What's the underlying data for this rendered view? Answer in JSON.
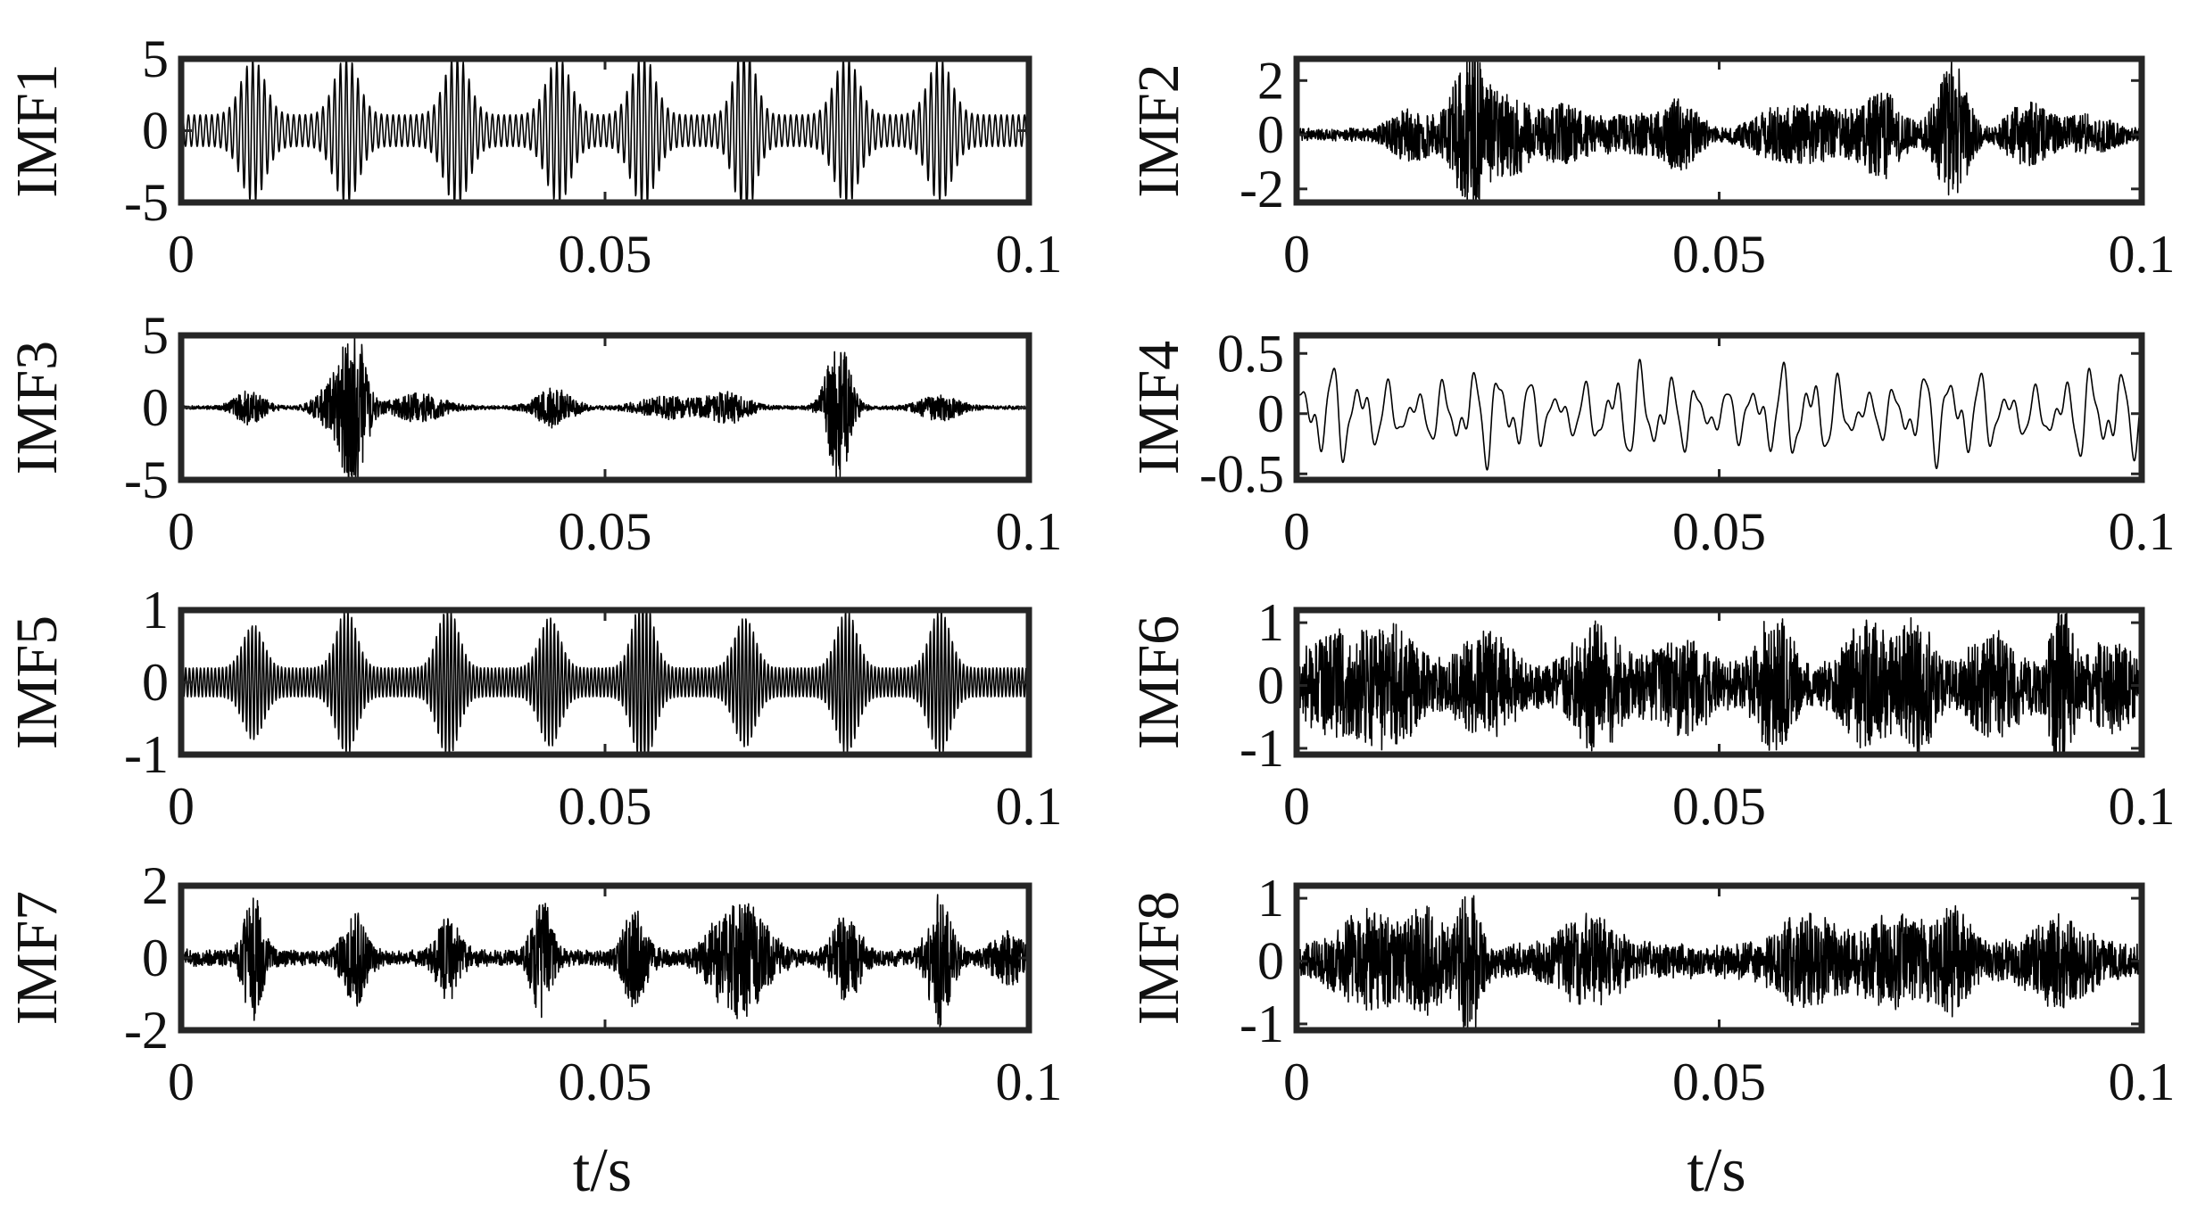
{
  "chart_data": [
    {
      "type": "line",
      "ylabel": "IMF1",
      "xlim": [
        0,
        0.1
      ],
      "ylim": [
        -5,
        5
      ],
      "xticks": [
        0,
        0.05,
        0.1
      ],
      "xtick_labels": [
        "0",
        "0.05",
        "0.1"
      ],
      "yticks": [
        5,
        0,
        -5
      ],
      "ytick_labels": [
        "5",
        "0",
        "-5"
      ],
      "xlabel": "",
      "grid": false,
      "signal": {
        "kind": "impulse",
        "base_amp": 1.1,
        "carrier_hz": 1450,
        "bursts": [
          [
            0.0085,
            3.9,
            0.0014
          ],
          [
            0.0195,
            4.1,
            0.0014
          ],
          [
            0.0325,
            4.3,
            0.0014
          ],
          [
            0.0445,
            4.0,
            0.0014
          ],
          [
            0.0545,
            4.2,
            0.0014
          ],
          [
            0.0665,
            5.0,
            0.0012
          ],
          [
            0.0785,
            4.1,
            0.0014
          ],
          [
            0.0895,
            3.9,
            0.0014
          ]
        ]
      }
    },
    {
      "type": "line",
      "ylabel": "IMF2",
      "xlim": [
        0,
        0.1
      ],
      "ylim": [
        -2.5,
        2.8
      ],
      "xticks": [
        0,
        0.05,
        0.1
      ],
      "xtick_labels": [
        "0",
        "0.05",
        "0.1"
      ],
      "yticks": [
        2,
        0,
        -2
      ],
      "ytick_labels": [
        "2",
        "0",
        "-2"
      ],
      "xlabel": "",
      "grid": false,
      "signal": {
        "kind": "noise",
        "base_amp": 0.25,
        "carrier_hz": 5200,
        "bursts": [
          [
            0.0135,
            0.8,
            0.0022
          ],
          [
            0.0205,
            2.8,
            0.0018
          ],
          [
            0.0255,
            1.3,
            0.002
          ],
          [
            0.0315,
            0.9,
            0.0025
          ],
          [
            0.0395,
            0.6,
            0.003
          ],
          [
            0.0455,
            1.1,
            0.0018
          ],
          [
            0.0565,
            0.7,
            0.0025
          ],
          [
            0.0625,
            0.9,
            0.003
          ],
          [
            0.0695,
            1.4,
            0.002
          ],
          [
            0.0775,
            2.6,
            0.0016
          ],
          [
            0.0865,
            1.0,
            0.0022
          ],
          [
            0.0935,
            0.6,
            0.0025
          ]
        ]
      }
    },
    {
      "type": "line",
      "ylabel": "IMF3",
      "xlim": [
        0,
        0.1
      ],
      "ylim": [
        -5,
        5
      ],
      "xticks": [
        0,
        0.05,
        0.1
      ],
      "xtick_labels": [
        "0",
        "0.05",
        "0.1"
      ],
      "yticks": [
        5,
        0,
        -5
      ],
      "ytick_labels": [
        "5",
        "0",
        "-5"
      ],
      "xlabel": "",
      "grid": false,
      "signal": {
        "kind": "noise",
        "base_amp": 0.15,
        "carrier_hz": 4200,
        "bursts": [
          [
            0.008,
            1.1,
            0.0015
          ],
          [
            0.0185,
            2.0,
            0.0018
          ],
          [
            0.0205,
            4.6,
            0.0012
          ],
          [
            0.028,
            0.9,
            0.0025
          ],
          [
            0.044,
            1.3,
            0.0018
          ],
          [
            0.0575,
            0.7,
            0.003
          ],
          [
            0.0645,
            1.0,
            0.002
          ],
          [
            0.0775,
            5.2,
            0.0012
          ],
          [
            0.0895,
            0.8,
            0.002
          ]
        ]
      }
    },
    {
      "type": "line",
      "ylabel": "IMF4",
      "xlim": [
        0,
        0.1
      ],
      "ylim": [
        -0.55,
        0.65
      ],
      "xticks": [
        0,
        0.05,
        0.1
      ],
      "xtick_labels": [
        "0",
        "0.05",
        "0.1"
      ],
      "yticks": [
        0.5,
        0,
        -0.5
      ],
      "ytick_labels": [
        "0.5",
        "0",
        "-0.5"
      ],
      "xlabel": "",
      "grid": false,
      "signal": {
        "kind": "wave",
        "amp": 0.3,
        "freqs_hz": [
          300,
          470,
          810
        ],
        "weights": [
          0.55,
          0.3,
          0.15
        ]
      }
    },
    {
      "type": "line",
      "ylabel": "IMF5",
      "xlim": [
        0,
        0.1
      ],
      "ylim": [
        -1,
        1
      ],
      "xticks": [
        0,
        0.05,
        0.1
      ],
      "xtick_labels": [
        "0",
        "0.05",
        "0.1"
      ],
      "yticks": [
        1,
        0,
        -1
      ],
      "ytick_labels": [
        "1",
        "0",
        "-1"
      ],
      "xlabel": "",
      "grid": false,
      "signal": {
        "kind": "impulse",
        "base_amp": 0.2,
        "carrier_hz": 2300,
        "bursts": [
          [
            0.0085,
            0.6,
            0.0012
          ],
          [
            0.0195,
            0.8,
            0.0012
          ],
          [
            0.0315,
            0.85,
            0.0012
          ],
          [
            0.0435,
            0.7,
            0.0012
          ],
          [
            0.0545,
            1.0,
            0.0012
          ],
          [
            0.0665,
            0.7,
            0.0012
          ],
          [
            0.0785,
            0.8,
            0.0012
          ],
          [
            0.0895,
            0.8,
            0.0012
          ]
        ]
      }
    },
    {
      "type": "line",
      "ylabel": "IMF6",
      "xlim": [
        0,
        0.1
      ],
      "ylim": [
        -1.1,
        1.2
      ],
      "xticks": [
        0,
        0.05,
        0.1
      ],
      "xtick_labels": [
        "0",
        "0.05",
        "0.1"
      ],
      "yticks": [
        1,
        0,
        -1
      ],
      "ytick_labels": [
        "1",
        "0",
        "-1"
      ],
      "xlabel": "",
      "grid": false,
      "signal": {
        "kind": "noise",
        "base_amp": 0.3,
        "carrier_hz": 6000,
        "bursts": [
          [
            0.0045,
            0.6,
            0.0035
          ],
          [
            0.0115,
            0.7,
            0.0025
          ],
          [
            0.0225,
            0.6,
            0.003
          ],
          [
            0.0355,
            0.8,
            0.0025
          ],
          [
            0.0455,
            0.55,
            0.003
          ],
          [
            0.0565,
            0.9,
            0.002
          ],
          [
            0.0675,
            0.8,
            0.0025
          ],
          [
            0.0735,
            0.9,
            0.0015
          ],
          [
            0.0825,
            0.6,
            0.003
          ],
          [
            0.0905,
            1.1,
            0.0012
          ],
          [
            0.0965,
            0.5,
            0.0025
          ]
        ]
      }
    },
    {
      "type": "line",
      "ylabel": "IMF7",
      "xlim": [
        0,
        0.1
      ],
      "ylim": [
        -2,
        2
      ],
      "xticks": [
        0,
        0.05,
        0.1
      ],
      "xtick_labels": [
        "0",
        "0.05",
        "0.1"
      ],
      "yticks": [
        2,
        0,
        -2
      ],
      "ytick_labels": [
        "2",
        "0",
        "-2"
      ],
      "xlabel": "t/s",
      "grid": false,
      "signal": {
        "kind": "noise",
        "base_amp": 0.25,
        "carrier_hz": 4600,
        "bursts": [
          [
            0.0085,
            1.6,
            0.001
          ],
          [
            0.0205,
            1.2,
            0.0012
          ],
          [
            0.0315,
            1.0,
            0.0012
          ],
          [
            0.0425,
            1.5,
            0.001
          ],
          [
            0.0535,
            1.2,
            0.0012
          ],
          [
            0.0645,
            1.1,
            0.002
          ],
          [
            0.0675,
            0.9,
            0.002
          ],
          [
            0.0785,
            1.1,
            0.0014
          ],
          [
            0.0895,
            1.7,
            0.0012
          ],
          [
            0.0975,
            0.6,
            0.0015
          ]
        ]
      }
    },
    {
      "type": "line",
      "ylabel": "IMF8",
      "xlim": [
        0,
        0.1
      ],
      "ylim": [
        -1.1,
        1.2
      ],
      "xticks": [
        0,
        0.05,
        0.1
      ],
      "xtick_labels": [
        "0",
        "0.05",
        "0.1"
      ],
      "yticks": [
        1,
        0,
        -1
      ],
      "ytick_labels": [
        "1",
        "0",
        "-1"
      ],
      "xlabel": "t/s",
      "grid": false,
      "signal": {
        "kind": "noise",
        "base_amp": 0.3,
        "carrier_hz": 6500,
        "bursts": [
          [
            0.0085,
            0.6,
            0.003
          ],
          [
            0.0155,
            0.6,
            0.002
          ],
          [
            0.0205,
            1.1,
            0.001
          ],
          [
            0.0345,
            0.5,
            0.003
          ],
          [
            0.0605,
            0.55,
            0.003
          ],
          [
            0.0705,
            0.5,
            0.003
          ],
          [
            0.0775,
            0.6,
            0.002
          ],
          [
            0.0905,
            0.5,
            0.003
          ]
        ]
      }
    }
  ]
}
